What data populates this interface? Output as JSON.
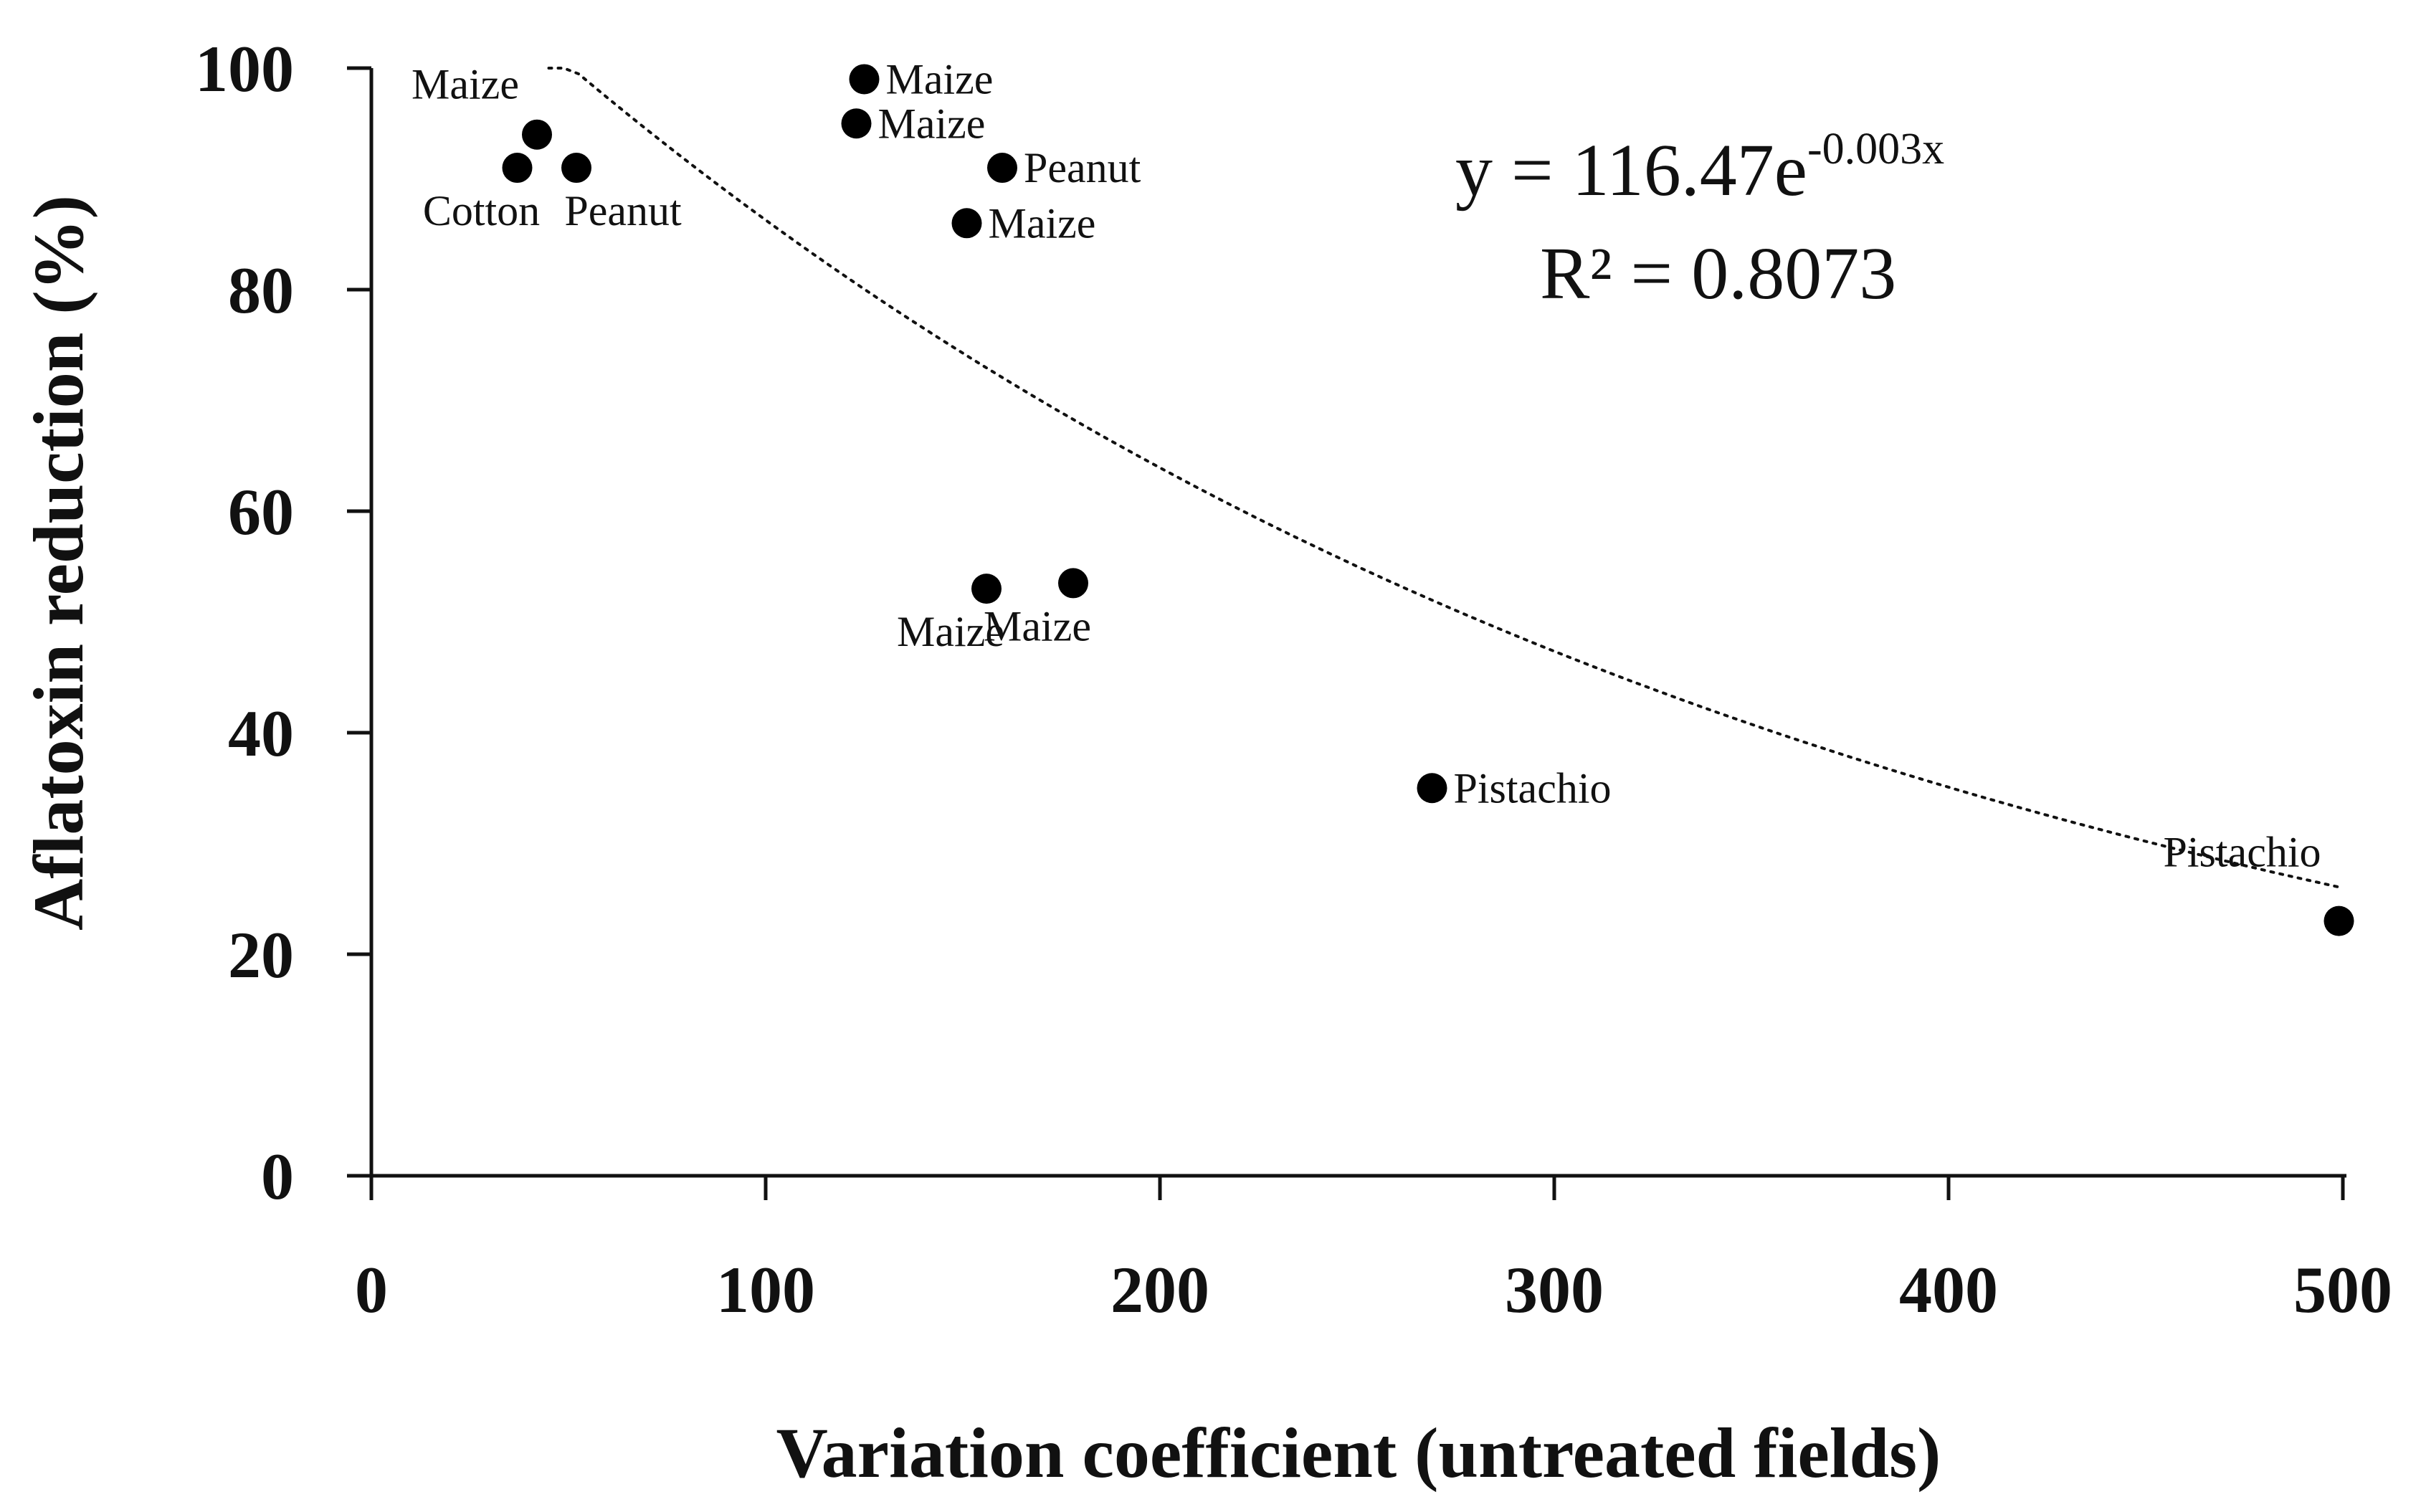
{
  "chart_data": {
    "type": "scatter",
    "title": "",
    "xlabel": "Variation coefficient (untreated fields)",
    "ylabel": "Aflatoxin reduction (%)",
    "xlim": [
      0,
      500
    ],
    "ylim": [
      0,
      100
    ],
    "x_ticks": [
      0,
      100,
      200,
      300,
      400,
      500
    ],
    "y_ticks": [
      0,
      20,
      40,
      60,
      80,
      100
    ],
    "grid": false,
    "legend": "none",
    "points": [
      {
        "x": 42,
        "y": 94,
        "label": "Maize",
        "label_anchor": "upper-left"
      },
      {
        "x": 37,
        "y": 91,
        "label": "Cotton",
        "label_anchor": "below"
      },
      {
        "x": 52,
        "y": 91,
        "label": "Peanut",
        "label_anchor": "below-right"
      },
      {
        "x": 125,
        "y": 99,
        "label": "Maize",
        "label_anchor": "right"
      },
      {
        "x": 123,
        "y": 95,
        "label": "Maize",
        "label_anchor": "right"
      },
      {
        "x": 160,
        "y": 91,
        "label": "Peanut",
        "label_anchor": "right"
      },
      {
        "x": 151,
        "y": 86,
        "label": "Maize",
        "label_anchor": "right"
      },
      {
        "x": 156,
        "y": 53,
        "label": "Maize",
        "label_anchor": "below"
      },
      {
        "x": 178,
        "y": 53.5,
        "label": "Maize",
        "label_anchor": "below"
      },
      {
        "x": 269,
        "y": 35,
        "label": "Pistachio",
        "label_anchor": "right"
      },
      {
        "x": 499,
        "y": 23,
        "label": "Pistachio",
        "label_anchor": "above-left"
      }
    ],
    "trendline": {
      "type": "exponential",
      "a": 116.47,
      "b": -0.003,
      "x_range": [
        45,
        500
      ],
      "equation_main": "y = 116.47e",
      "equation_exponent": "-0.003x",
      "r2_text": "R² = 0.8073"
    }
  }
}
